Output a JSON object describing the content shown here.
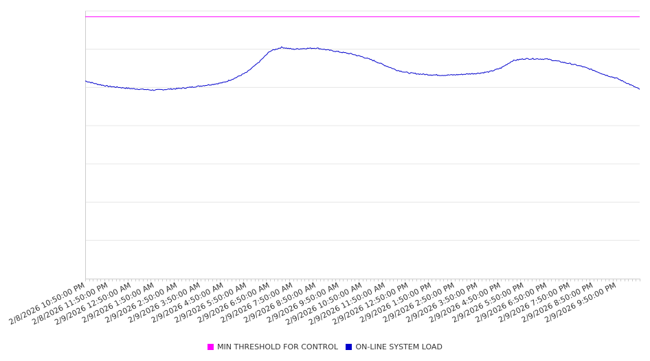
{
  "chart_data": {
    "type": "line",
    "title": "",
    "xlabel": "",
    "ylabel": "",
    "y_tick_labels_visible": false,
    "grid": "horizontal",
    "legend_position": "bottom-center",
    "ylim": [
      0,
      7
    ],
    "threshold": {
      "name": "MIN THRESHOLD FOR CONTROL",
      "value": 6.85,
      "color": "#ff00ff"
    },
    "x_tick_labels": [
      "2/8/2026 10:50:00 PM",
      "2/8/2026 11:50:00 PM",
      "2/9/2026 12:50:00 AM",
      "2/9/2026 1:50:00 AM",
      "2/9/2026 2:50:00 AM",
      "2/9/2026 3:50:00 AM",
      "2/9/2026 4:50:00 AM",
      "2/9/2026 5:50:00 AM",
      "2/9/2026 6:50:00 AM",
      "2/9/2026 7:50:00 AM",
      "2/9/2026 8:50:00 AM",
      "2/9/2026 9:50:00 AM",
      "2/9/2026 10:50:00 AM",
      "2/9/2026 11:50:00 AM",
      "2/9/2026 12:50:00 PM",
      "2/9/2026 1:50:00 PM",
      "2/9/2026 2:50:00 PM",
      "2/9/2026 3:50:00 PM",
      "2/9/2026 4:50:00 PM",
      "2/9/2026 5:50:00 PM",
      "2/9/2026 6:50:00 PM",
      "2/9/2026 7:50:00 PM",
      "2/9/2026 8:50:00 PM",
      "2/9/2026 9:50:00 PM"
    ],
    "series": [
      {
        "name": "ON-LINE SYSTEM LOAD",
        "color": "#0000cc",
        "x": [
          "2/8/2026 10:50:00 PM",
          "2/8/2026 11:20:00 PM",
          "2/8/2026 11:50:00 PM",
          "2/9/2026 12:20:00 AM",
          "2/9/2026 12:50:00 AM",
          "2/9/2026 1:20:00 AM",
          "2/9/2026 1:50:00 AM",
          "2/9/2026 2:20:00 AM",
          "2/9/2026 2:50:00 AM",
          "2/9/2026 3:20:00 AM",
          "2/9/2026 3:50:00 AM",
          "2/9/2026 4:20:00 AM",
          "2/9/2026 4:50:00 AM",
          "2/9/2026 5:20:00 AM",
          "2/9/2026 5:50:00 AM",
          "2/9/2026 6:20:00 AM",
          "2/9/2026 6:50:00 AM",
          "2/9/2026 7:20:00 AM",
          "2/9/2026 7:50:00 AM",
          "2/9/2026 8:20:00 AM",
          "2/9/2026 8:50:00 AM",
          "2/9/2026 9:20:00 AM",
          "2/9/2026 9:50:00 AM",
          "2/9/2026 10:20:00 AM",
          "2/9/2026 10:50:00 AM",
          "2/9/2026 11:20:00 AM",
          "2/9/2026 11:50:00 AM",
          "2/9/2026 12:20:00 PM",
          "2/9/2026 12:50:00 PM",
          "2/9/2026 1:20:00 PM",
          "2/9/2026 1:50:00 PM",
          "2/9/2026 2:20:00 PM",
          "2/9/2026 2:50:00 PM",
          "2/9/2026 3:20:00 PM",
          "2/9/2026 3:50:00 PM",
          "2/9/2026 4:20:00 PM",
          "2/9/2026 4:50:00 PM",
          "2/9/2026 5:20:00 PM",
          "2/9/2026 5:50:00 PM",
          "2/9/2026 6:20:00 PM",
          "2/9/2026 6:50:00 PM",
          "2/9/2026 7:20:00 PM",
          "2/9/2026 7:50:00 PM",
          "2/9/2026 8:20:00 PM",
          "2/9/2026 8:50:00 PM",
          "2/9/2026 9:20:00 PM",
          "2/9/2026 9:50:00 PM",
          "2/9/2026 10:20:00 PM",
          "2/9/2026 10:50:00 PM"
        ],
        "values": [
          5.17,
          5.09,
          5.03,
          5.0,
          4.97,
          4.95,
          4.93,
          4.95,
          4.97,
          5.0,
          5.04,
          5.08,
          5.13,
          5.25,
          5.4,
          5.65,
          5.95,
          6.05,
          6.0,
          6.02,
          6.03,
          5.98,
          5.93,
          5.88,
          5.8,
          5.7,
          5.57,
          5.45,
          5.38,
          5.35,
          5.33,
          5.32,
          5.33,
          5.35,
          5.37,
          5.41,
          5.51,
          5.7,
          5.75,
          5.75,
          5.74,
          5.68,
          5.62,
          5.55,
          5.45,
          5.33,
          5.24,
          5.1,
          4.95
        ]
      }
    ]
  },
  "legend": [
    {
      "label": "MIN THRESHOLD FOR CONTROL",
      "color": "#ff00ff"
    },
    {
      "label": "ON-LINE SYSTEM LOAD",
      "color": "#0000cc"
    }
  ]
}
